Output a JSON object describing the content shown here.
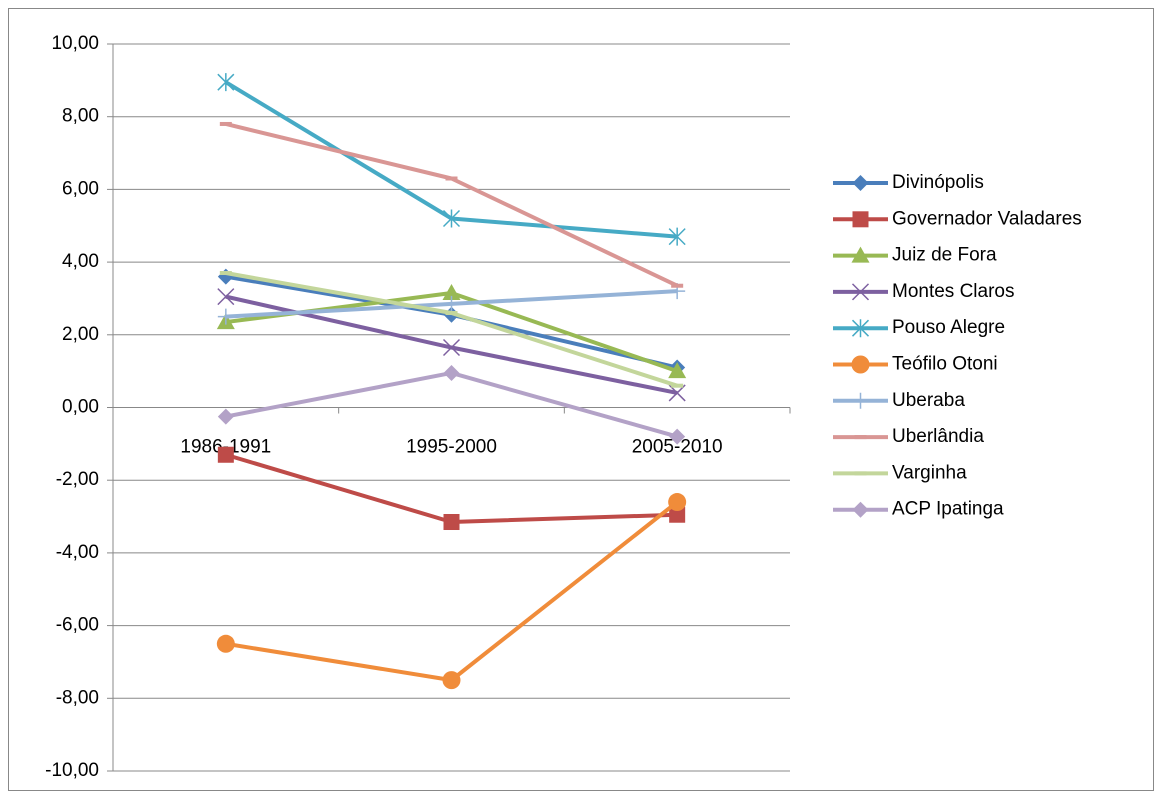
{
  "chart_data": {
    "type": "line",
    "categories": [
      "1986-1991",
      "1995-2000",
      "2005-2010"
    ],
    "series": [
      {
        "name": "Divinópolis",
        "color": "#4a7ebb",
        "marker": "diamond",
        "values": [
          3.6,
          2.55,
          1.1
        ]
      },
      {
        "name": "Governador Valadares",
        "color": "#be4b48",
        "marker": "square",
        "values": [
          -1.3,
          -3.15,
          -2.95
        ]
      },
      {
        "name": "Juiz de Fora",
        "color": "#98b954",
        "marker": "triangle",
        "values": [
          2.35,
          3.15,
          1.0
        ]
      },
      {
        "name": "Montes Claros",
        "color": "#7d60a0",
        "marker": "x",
        "values": [
          3.05,
          1.65,
          0.4
        ]
      },
      {
        "name": "Pouso Alegre",
        "color": "#46aac5",
        "marker": "star",
        "values": [
          8.95,
          5.2,
          4.7
        ]
      },
      {
        "name": "Teófilo Otoni",
        "color": "#f08c3a",
        "marker": "circle",
        "values": [
          -6.5,
          -7.5,
          -2.6
        ]
      },
      {
        "name": "Uberaba",
        "color": "#95b3d7",
        "marker": "plus",
        "values": [
          2.5,
          2.85,
          3.2
        ]
      },
      {
        "name": "Uberlândia",
        "color": "#d99694",
        "marker": "dash",
        "values": [
          7.8,
          6.3,
          3.35
        ]
      },
      {
        "name": "Varginha",
        "color": "#c3d69b",
        "marker": "dash",
        "values": [
          3.7,
          2.6,
          0.6
        ]
      },
      {
        "name": "ACP Ipatinga",
        "color": "#b3a2c7",
        "marker": "diamond",
        "values": [
          -0.25,
          0.95,
          -0.8
        ]
      }
    ],
    "ylim": [
      -10,
      10
    ],
    "yticks": [
      {
        "value": -10,
        "label": "-10,00"
      },
      {
        "value": -8,
        "label": "-8,00"
      },
      {
        "value": -6,
        "label": "-6,00"
      },
      {
        "value": -4,
        "label": "-4,00"
      },
      {
        "value": -2,
        "label": "-2,00"
      },
      {
        "value": 0,
        "label": "0,00"
      },
      {
        "value": 2,
        "label": "2,00"
      },
      {
        "value": 4,
        "label": "4,00"
      },
      {
        "value": 6,
        "label": "6,00"
      },
      {
        "value": 8,
        "label": "8,00"
      },
      {
        "value": 10,
        "label": "10,00"
      }
    ],
    "grid": true,
    "legend": "right"
  }
}
